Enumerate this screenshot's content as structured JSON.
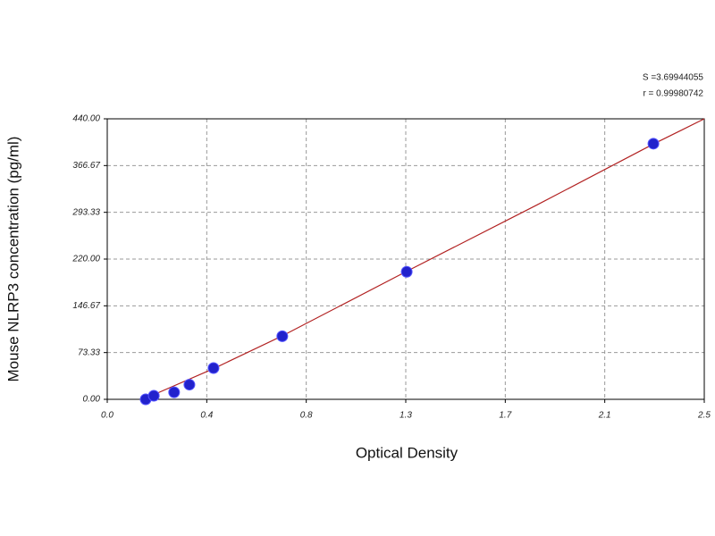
{
  "chart_data": {
    "type": "scatter",
    "x_label": "Optical Density",
    "y_label": "Mouse NLRP3 concentration (pg/ml)",
    "annotations": [
      "S =3.69944055",
      "r = 0.99980742"
    ],
    "xlim": [
      0,
      2.5
    ],
    "ylim": [
      0,
      440
    ],
    "xticks": [
      {
        "value": 0,
        "label": "0.0"
      },
      {
        "value": 0.4167,
        "label": "0.4"
      },
      {
        "value": 0.8333,
        "label": "0.8"
      },
      {
        "value": 1.25,
        "label": "1.3"
      },
      {
        "value": 1.6667,
        "label": "1.7"
      },
      {
        "value": 2.0833,
        "label": "2.1"
      },
      2.5
    ],
    "yticks": [
      {
        "value": 0,
        "label": "0.00"
      },
      {
        "value": 73.33,
        "label": "73.33"
      },
      {
        "value": 146.67,
        "label": "146.67"
      },
      {
        "value": 220,
        "label": "220.00"
      },
      {
        "value": 293.33,
        "label": "293.33"
      },
      {
        "value": 366.67,
        "label": "366.67"
      },
      {
        "value": 440,
        "label": "440.00"
      }
    ],
    "grid": true,
    "series": [
      {
        "color": "#2222cc",
        "x": [
          0.161,
          0.195,
          0.28,
          0.344,
          0.445,
          0.733,
          1.254,
          2.287
        ],
        "values": [
          0,
          5.6,
          11,
          23,
          49,
          99,
          200,
          401
        ]
      }
    ],
    "fit": {
      "color": "#b22222",
      "x": [
        0.15,
        0.45,
        0.73,
        1.25,
        1.8,
        2.29,
        2.5
      ],
      "y": [
        0,
        49,
        99,
        200,
        305,
        401,
        440
      ]
    }
  }
}
